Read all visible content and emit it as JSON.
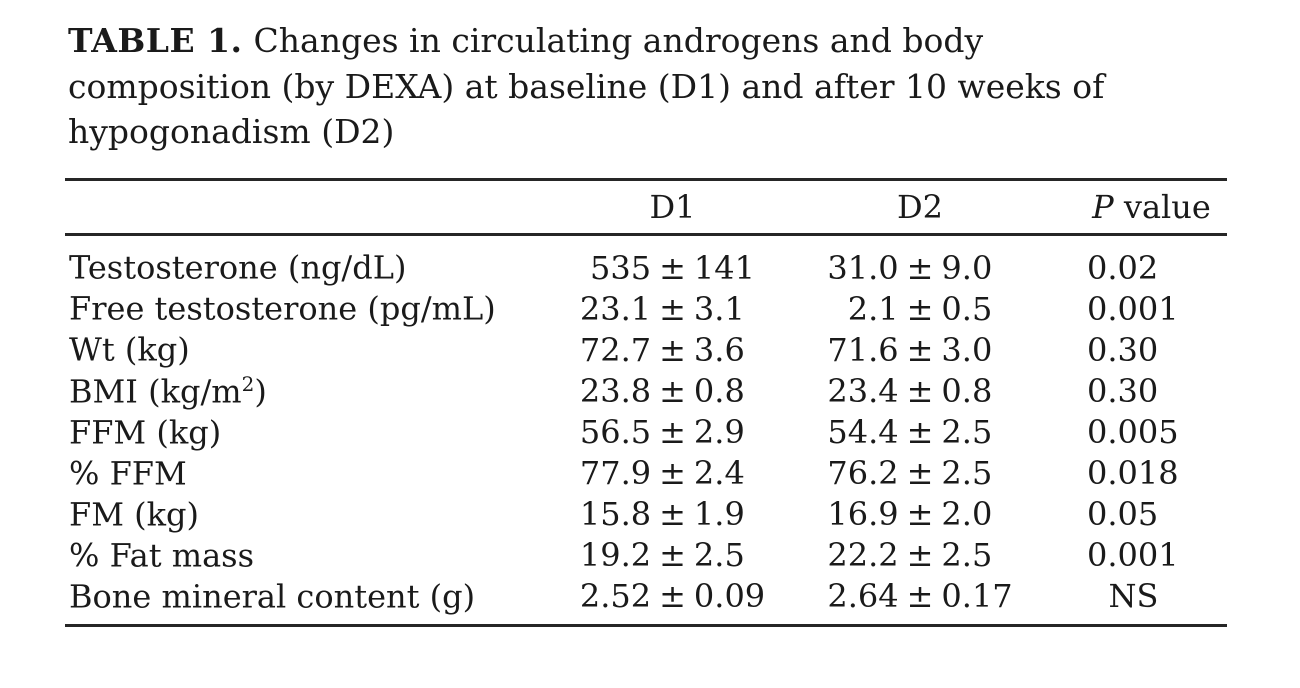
{
  "page": {
    "bg": "#ffffff",
    "text_color": "#1a1a1a",
    "rule_color": "#262626"
  },
  "caption": {
    "label": "TABLE 1.",
    "line1": "Changes in circulating androgens and body",
    "line2": "composition (by DEXA) at baseline (D1) and after 10 weeks of",
    "line3": "hypogonadism (D2)"
  },
  "table": {
    "pm": "±",
    "columns": {
      "label": "",
      "d1": "D1",
      "d2": "D2",
      "p_italic": "P",
      "p_rest": " value"
    },
    "rows": [
      {
        "label": "Testosterone (ng/dL)",
        "label_sup": "",
        "label_end": "",
        "d1": {
          "mean": "535",
          "sd": "141"
        },
        "d2": {
          "mean": "31.0",
          "sd": "9.0"
        },
        "p": "0.02"
      },
      {
        "label": "Free testosterone (pg/mL)",
        "label_sup": "",
        "label_end": "",
        "d1": {
          "mean": "23.1",
          "sd": "3.1"
        },
        "d2": {
          "mean": "2.1",
          "sd": "0.5"
        },
        "p": "0.001"
      },
      {
        "label": "Wt (kg)",
        "label_sup": "",
        "label_end": "",
        "d1": {
          "mean": "72.7",
          "sd": "3.6"
        },
        "d2": {
          "mean": "71.6",
          "sd": "3.0"
        },
        "p": "0.30"
      },
      {
        "label": "BMI (kg/m",
        "label_sup": "2",
        "label_end": ")",
        "d1": {
          "mean": "23.8",
          "sd": "0.8"
        },
        "d2": {
          "mean": "23.4",
          "sd": "0.8"
        },
        "p": "0.30"
      },
      {
        "label": "FFM (kg)",
        "label_sup": "",
        "label_end": "",
        "d1": {
          "mean": "56.5",
          "sd": "2.9"
        },
        "d2": {
          "mean": "54.4",
          "sd": "2.5"
        },
        "p": "0.005"
      },
      {
        "label": "% FFM",
        "label_sup": "",
        "label_end": "",
        "d1": {
          "mean": "77.9",
          "sd": "2.4"
        },
        "d2": {
          "mean": "76.2",
          "sd": "2.5"
        },
        "p": "0.018"
      },
      {
        "label": "FM (kg)",
        "label_sup": "",
        "label_end": "",
        "d1": {
          "mean": "15.8",
          "sd": "1.9"
        },
        "d2": {
          "mean": "16.9",
          "sd": "2.0"
        },
        "p": "0.05"
      },
      {
        "label": "% Fat mass",
        "label_sup": "",
        "label_end": "",
        "d1": {
          "mean": "19.2",
          "sd": "2.5"
        },
        "d2": {
          "mean": "22.2",
          "sd": "2.5"
        },
        "p": "0.001"
      },
      {
        "label": "Bone mineral content (g)",
        "label_sup": "",
        "label_end": "",
        "d1": {
          "mean": "2.52",
          "sd": "0.09"
        },
        "d2": {
          "mean": "2.64",
          "sd": "0.17"
        },
        "p": "NS"
      }
    ]
  }
}
